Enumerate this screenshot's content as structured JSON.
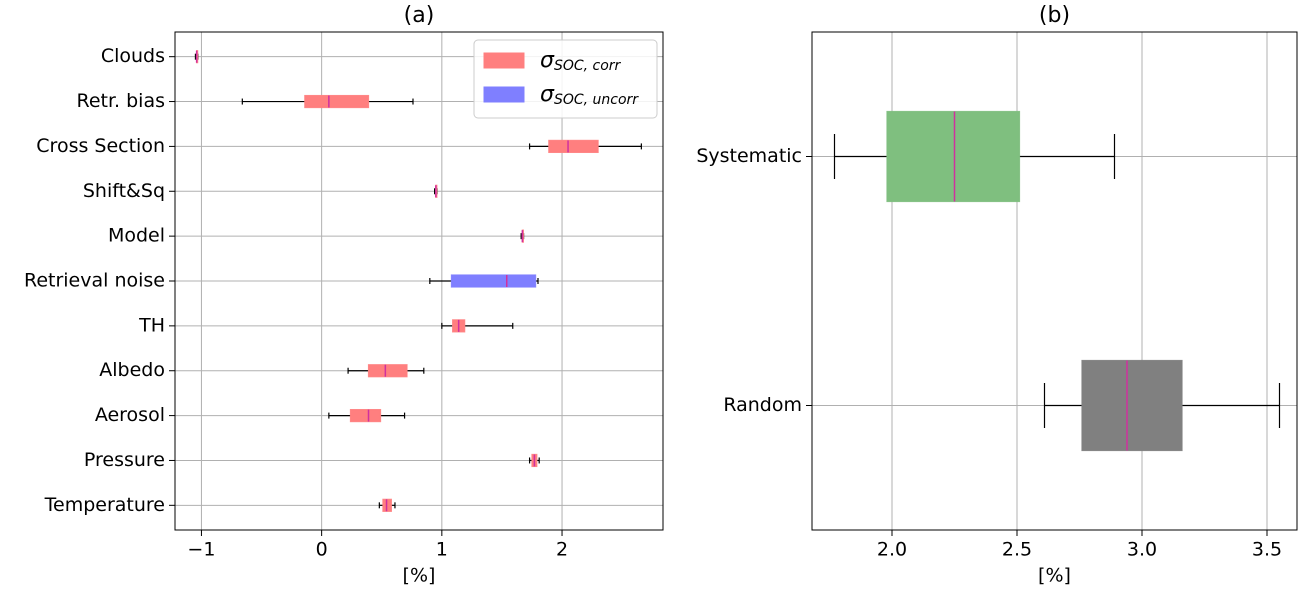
{
  "chart_data": [
    {
      "type": "boxplot",
      "title": "(a)",
      "x_label": "[%]",
      "categories": [
        "Clouds",
        "Retr. bias",
        "Cross Section",
        "Shift&Sq",
        "Model",
        "Retrieval noise",
        "TH",
        "Albedo",
        "Aerosol",
        "Pressure",
        "Temperature"
      ],
      "series": [
        {
          "name": "σSOC, corr",
          "color": "#ff7f7f",
          "values": [
            {
              "low": -1.05,
              "q1": -1.04,
              "median": -1.04,
              "q3": -1.04,
              "high": -1.03
            },
            {
              "low": -0.66,
              "q1": -0.14,
              "median": 0.06,
              "q3": 0.39,
              "high": 0.76
            },
            {
              "low": 1.73,
              "q1": 1.89,
              "median": 2.05,
              "q3": 2.3,
              "high": 2.66
            },
            {
              "low": 0.94,
              "q1": 0.95,
              "median": 0.95,
              "q3": 0.95,
              "high": 0.96
            },
            {
              "low": 1.66,
              "q1": 1.67,
              "median": 1.67,
              "q3": 1.67,
              "high": 1.68
            },
            null,
            {
              "low": 1.0,
              "q1": 1.09,
              "median": 1.14,
              "q3": 1.19,
              "high": 1.59
            },
            {
              "low": 0.22,
              "q1": 0.39,
              "median": 0.53,
              "q3": 0.71,
              "high": 0.85
            },
            {
              "low": 0.06,
              "q1": 0.24,
              "median": 0.39,
              "q3": 0.49,
              "high": 0.69
            },
            {
              "low": 1.73,
              "q1": 1.75,
              "median": 1.77,
              "q3": 1.79,
              "high": 1.81
            },
            {
              "low": 0.48,
              "q1": 0.51,
              "median": 0.54,
              "q3": 0.58,
              "high": 0.61
            }
          ]
        },
        {
          "name": "σSOC, uncorr",
          "color": "#7f7fff",
          "values": [
            null,
            null,
            null,
            null,
            null,
            {
              "low": 0.9,
              "q1": 1.08,
              "median": 1.54,
              "q3": 1.78,
              "high": 1.8
            },
            null,
            null,
            null,
            null,
            null
          ]
        }
      ],
      "median_color": "#d0309f",
      "xlim": [
        -1.22,
        2.84
      ],
      "xticks": [
        {
          "value": -1,
          "label": "−1"
        },
        0,
        1,
        2
      ],
      "grid": true,
      "legend": "upper right"
    },
    {
      "type": "boxplot",
      "title": "(b)",
      "x_label": "[%]",
      "categories": [
        "Systematic",
        "Random"
      ],
      "series": [
        {
          "color": "#7fbf7f",
          "values": [
            {
              "low": 1.77,
              "q1": 1.98,
              "median": 2.25,
              "q3": 2.51,
              "high": 2.89
            },
            null
          ]
        },
        {
          "color": "#808080",
          "values": [
            null,
            {
              "low": 2.61,
              "q1": 2.76,
              "median": 2.94,
              "q3": 3.16,
              "high": 3.55
            }
          ]
        }
      ],
      "median_color": "#d0309f",
      "xlim": [
        1.68,
        3.62
      ],
      "xticks": [
        {
          "value": 2,
          "label": "2.0"
        },
        2.5,
        {
          "value": 3,
          "label": "3.0"
        },
        3.5
      ],
      "grid": true
    }
  ]
}
